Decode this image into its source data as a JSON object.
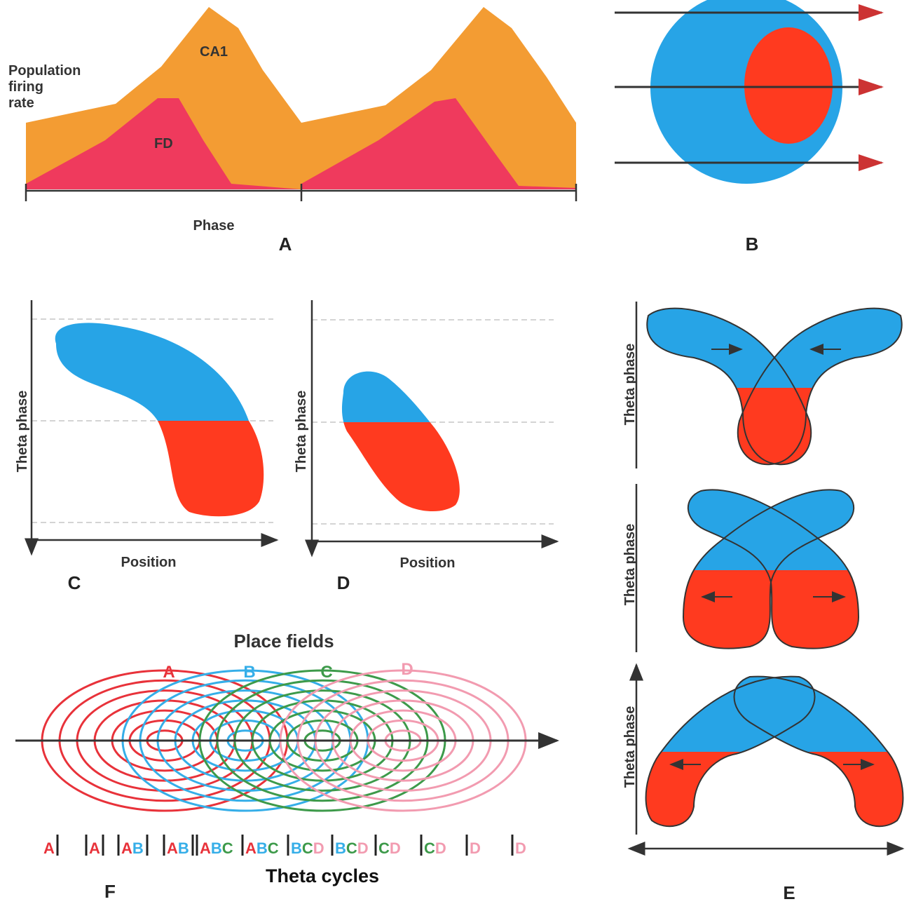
{
  "panel_a": {
    "ylabel": [
      "Population",
      "firing",
      "rate"
    ],
    "curves": [
      "CA1",
      "FD"
    ],
    "xlabel": "Phase",
    "label": "A"
  },
  "panel_b": {
    "label": "B"
  },
  "panel_c": {
    "ylabel": "Theta phase",
    "xlabel": "Position",
    "label": "C"
  },
  "panel_d": {
    "ylabel": "Theta phase",
    "xlabel": "Position",
    "label": "D"
  },
  "panel_e": {
    "ylabels": [
      "Theta phase",
      "Theta phase",
      "Theta phase"
    ],
    "label": "E"
  },
  "panel_f": {
    "title": "Place fields",
    "fields": [
      {
        "name": "A",
        "color": "#e8323a"
      },
      {
        "name": "B",
        "color": "#35aee8"
      },
      {
        "name": "C",
        "color": "#3d9a4a"
      },
      {
        "name": "D",
        "color": "#f29bb0"
      }
    ],
    "theta_cycles": [
      [
        "A"
      ],
      [
        "A"
      ],
      [
        "A",
        "B"
      ],
      [
        "A",
        "B"
      ],
      [
        "A",
        "B",
        "C"
      ],
      [
        "A",
        "B",
        "C"
      ],
      [
        "B",
        "C",
        "D"
      ],
      [
        "B",
        "C",
        "D"
      ],
      [
        "C",
        "D"
      ],
      [
        "C",
        "D"
      ],
      [
        "D"
      ],
      [
        "D"
      ]
    ],
    "xlabel": "Theta cycles",
    "label": "F"
  }
}
